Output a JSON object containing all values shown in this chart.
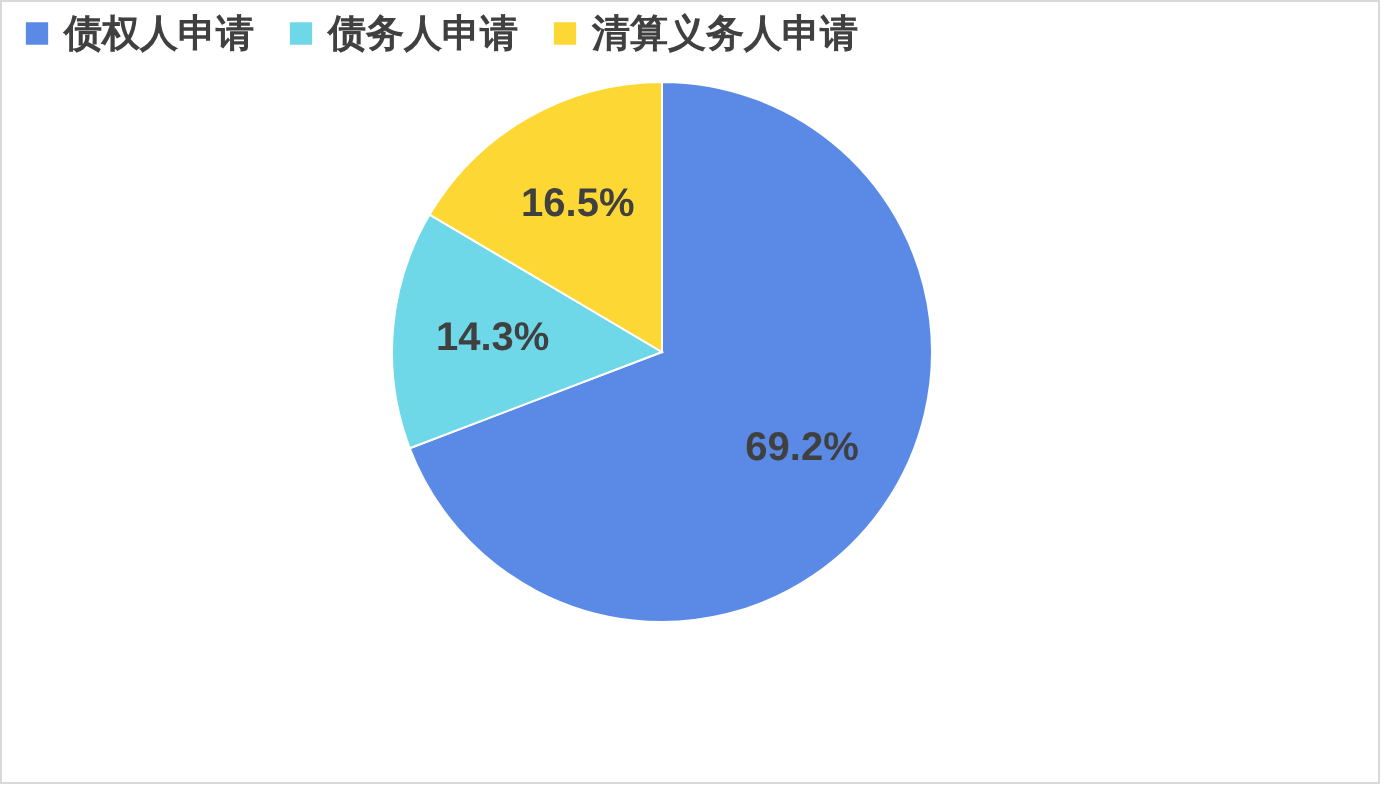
{
  "chart_data": {
    "type": "pie",
    "categories": [
      "债权人申请",
      "债务人申请",
      "清算义务人申请"
    ],
    "values": [
      69.2,
      14.3,
      16.5
    ],
    "colors": [
      "#5b8ae6",
      "#6fd8e8",
      "#fdd835"
    ],
    "value_labels": [
      "69.2%",
      "14.3%",
      "16.5%"
    ],
    "legend": "top left"
  }
}
